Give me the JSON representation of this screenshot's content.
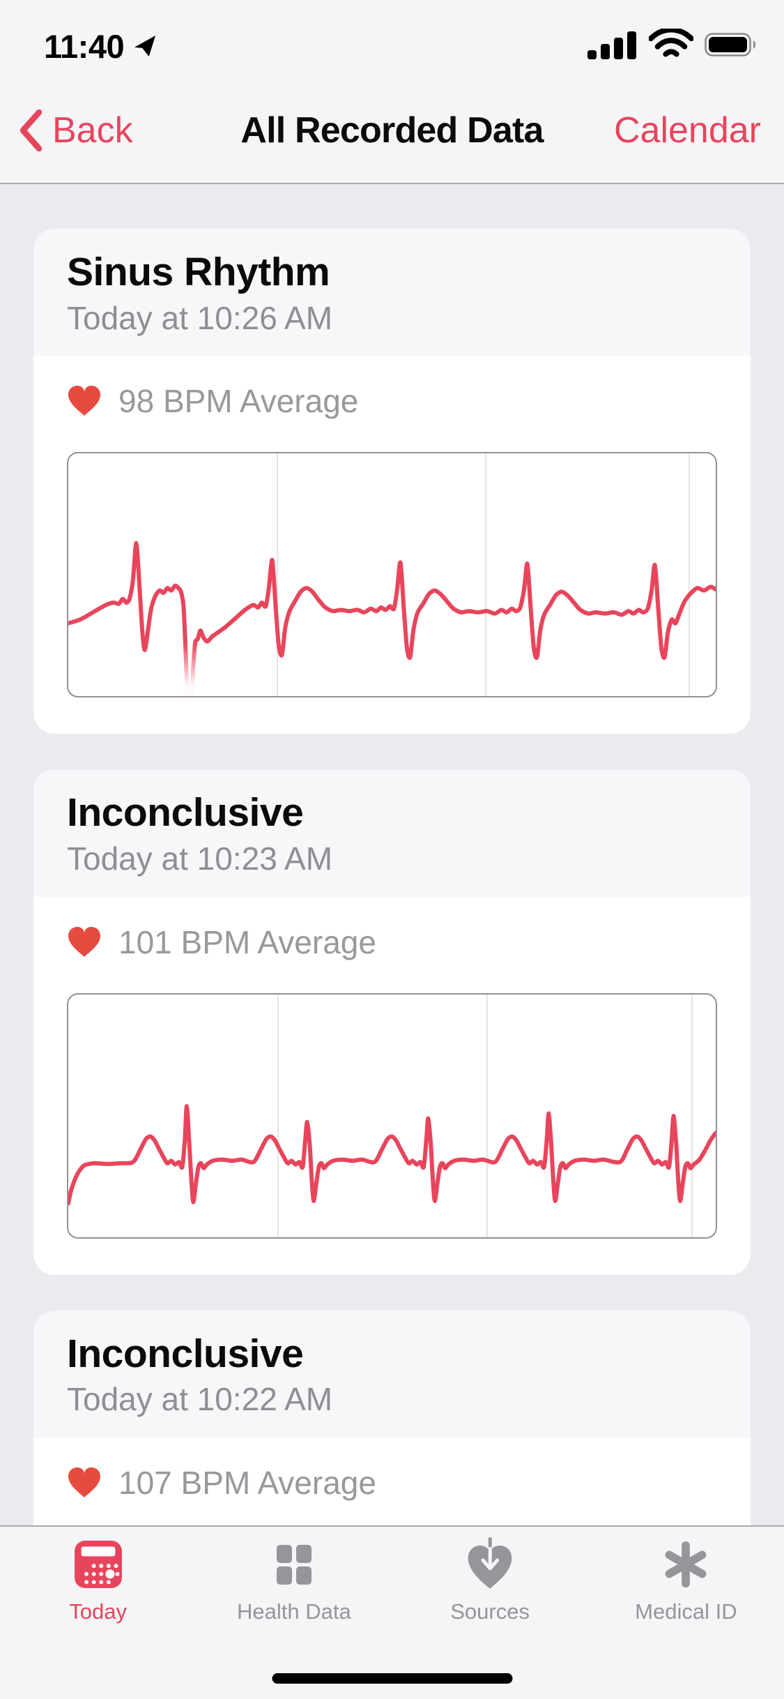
{
  "colors": {
    "accent": "#E6455C",
    "ecg_line": "#E8455C",
    "heart_icon": "#E74B3F",
    "page_bg": "#EAEAEF",
    "bar_bg": "#F5F5F7",
    "card_header_bg": "#F7F7FA",
    "hairline": "#ACACAE",
    "secondary_text": "#8E8E93",
    "bpm_text": "#98989D",
    "chart_border": "#919195",
    "chart_gridline": "#E4E4E8",
    "tab_inactive": "#95959A"
  },
  "status_bar": {
    "time": "11:40",
    "icons": [
      "location-arrow",
      "cellular-signal-full",
      "wifi",
      "battery-full"
    ]
  },
  "nav_bar": {
    "back_label": "Back",
    "title": "All Recorded Data",
    "action_label": "Calendar"
  },
  "cards": [
    {
      "title": "Sinus Rhythm",
      "timestamp": "Today at 10:26 AM",
      "bpm_label": "98 BPM Average"
    },
    {
      "title": "Inconclusive",
      "timestamp": "Today at 10:23 AM",
      "bpm_label": "101 BPM Average"
    },
    {
      "title": "Inconclusive",
      "timestamp": "Today at 10:22 AM",
      "bpm_label": "107 BPM Average"
    }
  ],
  "tab_bar": {
    "items": [
      {
        "label": "Today",
        "icon": "calendar-icon",
        "active": true
      },
      {
        "label": "Health Data",
        "icon": "grid-icon",
        "active": false
      },
      {
        "label": "Sources",
        "icon": "heart-arrow-icon",
        "active": false
      },
      {
        "label": "Medical ID",
        "icon": "medical-asterisk-icon",
        "active": false
      }
    ]
  },
  "chart_data": [
    {
      "type": "line",
      "name": "ecg-waveform-sinus-rhythm-1026am",
      "classification": "Sinus Rhythm",
      "bpm_average": 98,
      "legend": "none",
      "grid": "vertical-lines",
      "gridlines_pct": [
        32.2,
        64.4,
        95.8
      ],
      "points_x_permille_y_pct": [
        [
          0,
          70
        ],
        [
          18,
          68.5
        ],
        [
          38,
          65.5
        ],
        [
          58,
          62.5
        ],
        [
          70,
          61.5
        ],
        [
          78,
          62
        ],
        [
          84,
          60
        ],
        [
          90,
          61.5
        ],
        [
          95,
          59.5
        ],
        [
          100,
          52
        ],
        [
          105,
          37
        ],
        [
          110,
          55
        ],
        [
          114,
          72
        ],
        [
          118,
          81
        ],
        [
          123,
          73
        ],
        [
          128,
          64
        ],
        [
          134,
          59
        ],
        [
          141,
          56.5
        ],
        [
          147,
          57.5
        ],
        [
          153,
          55.5
        ],
        [
          159,
          56.5
        ],
        [
          165,
          54.5
        ],
        [
          170,
          55.5
        ],
        [
          174,
          57
        ],
        [
          178,
          63
        ],
        [
          181,
          80
        ],
        [
          184,
          99
        ],
        [
          187,
          104
        ],
        [
          190,
          104
        ],
        [
          193,
          88
        ],
        [
          196,
          78
        ],
        [
          200,
          76.5
        ],
        [
          204,
          73
        ],
        [
          209,
          76
        ],
        [
          215,
          77.5
        ],
        [
          222,
          75.5
        ],
        [
          230,
          74
        ],
        [
          243,
          71.5
        ],
        [
          258,
          68
        ],
        [
          273,
          64.5
        ],
        [
          286,
          62.5
        ],
        [
          293,
          63.5
        ],
        [
          299,
          61.5
        ],
        [
          305,
          63
        ],
        [
          310,
          55
        ],
        [
          315,
          44
        ],
        [
          320,
          62
        ],
        [
          325,
          79
        ],
        [
          330,
          83
        ],
        [
          335,
          72
        ],
        [
          341,
          65.5
        ],
        [
          350,
          61
        ],
        [
          359,
          57
        ],
        [
          368,
          55.5
        ],
        [
          377,
          57
        ],
        [
          387,
          60.5
        ],
        [
          397,
          63.5
        ],
        [
          409,
          65
        ],
        [
          421,
          64.5
        ],
        [
          434,
          65
        ],
        [
          447,
          64.5
        ],
        [
          457,
          65.5
        ],
        [
          467,
          64
        ],
        [
          476,
          65
        ],
        [
          483,
          63.5
        ],
        [
          490,
          64.5
        ],
        [
          497,
          63
        ],
        [
          503,
          64
        ],
        [
          508,
          56
        ],
        [
          513,
          45
        ],
        [
          518,
          63
        ],
        [
          523,
          80
        ],
        [
          528,
          84
        ],
        [
          533,
          73
        ],
        [
          539,
          66
        ],
        [
          548,
          62
        ],
        [
          557,
          58
        ],
        [
          566,
          56.5
        ],
        [
          575,
          58
        ],
        [
          585,
          61
        ],
        [
          595,
          64
        ],
        [
          607,
          65.5
        ],
        [
          619,
          65
        ],
        [
          633,
          65.5
        ],
        [
          647,
          65
        ],
        [
          659,
          66
        ],
        [
          669,
          64.5
        ],
        [
          677,
          65.5
        ],
        [
          685,
          64
        ],
        [
          692,
          65
        ],
        [
          698,
          63.5
        ],
        [
          704,
          56
        ],
        [
          709,
          45.5
        ],
        [
          714,
          63
        ],
        [
          719,
          80
        ],
        [
          724,
          84
        ],
        [
          729,
          73
        ],
        [
          735,
          66.5
        ],
        [
          744,
          62.5
        ],
        [
          753,
          58.5
        ],
        [
          762,
          57
        ],
        [
          771,
          58.5
        ],
        [
          781,
          61.5
        ],
        [
          791,
          64.5
        ],
        [
          803,
          66
        ],
        [
          815,
          65.5
        ],
        [
          829,
          66
        ],
        [
          843,
          65.5
        ],
        [
          855,
          66.5
        ],
        [
          865,
          65
        ],
        [
          873,
          66
        ],
        [
          881,
          64.5
        ],
        [
          888,
          65.5
        ],
        [
          895,
          64
        ],
        [
          901,
          56.5
        ],
        [
          906,
          46
        ],
        [
          911,
          63
        ],
        [
          916,
          80
        ],
        [
          921,
          84
        ],
        [
          926,
          74
        ],
        [
          932,
          68.5
        ],
        [
          938,
          70
        ],
        [
          944,
          66
        ],
        [
          952,
          61
        ],
        [
          962,
          57.5
        ],
        [
          972,
          55.5
        ],
        [
          982,
          56.5
        ],
        [
          992,
          55
        ],
        [
          1000,
          56
        ]
      ]
    },
    {
      "type": "line",
      "name": "ecg-waveform-inconclusive-1023am",
      "classification": "Inconclusive",
      "bpm_average": 101,
      "legend": "none",
      "grid": "vertical-lines",
      "gridlines_pct": [
        32.3,
        64.6,
        96.2
      ],
      "points_x_permille_y_pct": [
        [
          0,
          86
        ],
        [
          4,
          81
        ],
        [
          9,
          77
        ],
        [
          15,
          73.5
        ],
        [
          24,
          70.5
        ],
        [
          40,
          69.5
        ],
        [
          60,
          69.8
        ],
        [
          80,
          69.5
        ],
        [
          100,
          69
        ],
        [
          111,
          64
        ],
        [
          120,
          59.5
        ],
        [
          127,
          58.5
        ],
        [
          133,
          60
        ],
        [
          140,
          63.5
        ],
        [
          147,
          67
        ],
        [
          153,
          69.5
        ],
        [
          159,
          68.5
        ],
        [
          165,
          70
        ],
        [
          171,
          69
        ],
        [
          176,
          71
        ],
        [
          180,
          60
        ],
        [
          183,
          46
        ],
        [
          187,
          62
        ],
        [
          190,
          76
        ],
        [
          193,
          85.5
        ],
        [
          197,
          78
        ],
        [
          201,
          71
        ],
        [
          205,
          69.5
        ],
        [
          209,
          71.5
        ],
        [
          214,
          70
        ],
        [
          223,
          68.5
        ],
        [
          238,
          68
        ],
        [
          253,
          68.5
        ],
        [
          268,
          68
        ],
        [
          286,
          69
        ],
        [
          297,
          64
        ],
        [
          306,
          59.5
        ],
        [
          313,
          58.5
        ],
        [
          319,
          60
        ],
        [
          326,
          63.5
        ],
        [
          333,
          67
        ],
        [
          339,
          69.5
        ],
        [
          345,
          68.5
        ],
        [
          351,
          70
        ],
        [
          357,
          69
        ],
        [
          362,
          71
        ],
        [
          366,
          60
        ],
        [
          369,
          52.5
        ],
        [
          373,
          62
        ],
        [
          376,
          76
        ],
        [
          379,
          85
        ],
        [
          383,
          78
        ],
        [
          387,
          71
        ],
        [
          391,
          69.5
        ],
        [
          395,
          71.5
        ],
        [
          400,
          70
        ],
        [
          409,
          68.5
        ],
        [
          424,
          68
        ],
        [
          439,
          68.5
        ],
        [
          454,
          68
        ],
        [
          473,
          69
        ],
        [
          484,
          64
        ],
        [
          493,
          59.5
        ],
        [
          500,
          58.5
        ],
        [
          506,
          60
        ],
        [
          513,
          63.5
        ],
        [
          520,
          67
        ],
        [
          526,
          69.5
        ],
        [
          532,
          68.5
        ],
        [
          538,
          70
        ],
        [
          544,
          69
        ],
        [
          549,
          71
        ],
        [
          553,
          60
        ],
        [
          556,
          51
        ],
        [
          560,
          62
        ],
        [
          563,
          76
        ],
        [
          566,
          85
        ],
        [
          570,
          78
        ],
        [
          574,
          71
        ],
        [
          578,
          69.5
        ],
        [
          582,
          71.5
        ],
        [
          587,
          70
        ],
        [
          596,
          68.5
        ],
        [
          611,
          68
        ],
        [
          626,
          68.5
        ],
        [
          641,
          68
        ],
        [
          659,
          69
        ],
        [
          670,
          64
        ],
        [
          679,
          59.5
        ],
        [
          686,
          58.5
        ],
        [
          692,
          60
        ],
        [
          699,
          63.5
        ],
        [
          706,
          67
        ],
        [
          712,
          69.5
        ],
        [
          718,
          68.5
        ],
        [
          724,
          70
        ],
        [
          730,
          69
        ],
        [
          735,
          71
        ],
        [
          739,
          60
        ],
        [
          742,
          49
        ],
        [
          746,
          62
        ],
        [
          749,
          76
        ],
        [
          752,
          85
        ],
        [
          756,
          78
        ],
        [
          760,
          71
        ],
        [
          764,
          69.5
        ],
        [
          768,
          71.5
        ],
        [
          773,
          70
        ],
        [
          782,
          68.5
        ],
        [
          797,
          68
        ],
        [
          812,
          68.5
        ],
        [
          827,
          68
        ],
        [
          852,
          69
        ],
        [
          863,
          64
        ],
        [
          872,
          59.5
        ],
        [
          879,
          58.5
        ],
        [
          885,
          60
        ],
        [
          892,
          63.5
        ],
        [
          899,
          67
        ],
        [
          905,
          69.5
        ],
        [
          911,
          68.5
        ],
        [
          917,
          70
        ],
        [
          923,
          69
        ],
        [
          928,
          71
        ],
        [
          932,
          60
        ],
        [
          935,
          50
        ],
        [
          939,
          62
        ],
        [
          942,
          76
        ],
        [
          945,
          85
        ],
        [
          949,
          78
        ],
        [
          953,
          71
        ],
        [
          957,
          69.5
        ],
        [
          961,
          71.5
        ],
        [
          966,
          70
        ],
        [
          975,
          68
        ],
        [
          984,
          64
        ],
        [
          992,
          60
        ],
        [
          1000,
          57
        ]
      ]
    }
  ]
}
